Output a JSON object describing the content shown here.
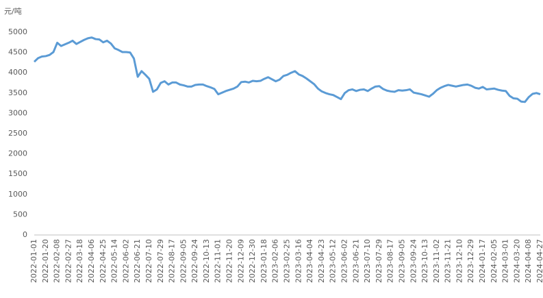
{
  "chart_data": {
    "type": "line",
    "y_label": "元/吨",
    "categories": [
      "2022-01-01",
      null,
      null,
      "2022-01-20",
      null,
      null,
      "2022-02-08",
      null,
      null,
      "2022-02-27",
      null,
      null,
      "2022-03-18",
      null,
      null,
      "2022-04-06",
      null,
      null,
      "2022-04-25",
      null,
      null,
      "2022-05-14",
      null,
      null,
      "2022-06-02",
      null,
      null,
      "2022-06-21",
      null,
      null,
      "2022-07-10",
      null,
      null,
      "2022-07-29",
      null,
      null,
      "2022-08-17",
      null,
      null,
      "2022-09-05",
      null,
      null,
      "2022-09-24",
      null,
      null,
      "2022-10-13",
      null,
      null,
      "2022-11-01",
      null,
      null,
      "2022-11-20",
      null,
      null,
      "2022-12-09",
      null,
      null,
      "2022-12-30",
      null,
      null,
      "2023-01-18",
      null,
      null,
      "2023-02-06",
      null,
      null,
      "2023-02-25",
      null,
      null,
      "2023-03-16",
      null,
      null,
      "2023-04-04",
      null,
      null,
      "2023-04-23",
      null,
      null,
      "2023-05-12",
      null,
      null,
      "2023-06-02",
      null,
      null,
      "2023-06-21",
      null,
      null,
      "2023-07-10",
      null,
      null,
      "2023-07-29",
      null,
      null,
      "2023-08-17",
      null,
      null,
      "2023-09-05",
      null,
      null,
      "2023-09-24",
      null,
      null,
      "2023-10-13",
      null,
      null,
      "2023-11-02",
      null,
      null,
      "2023-11-21",
      null,
      null,
      "2023-12-10",
      null,
      null,
      "2023-12-29",
      null,
      null,
      "2024-01-17",
      null,
      null,
      "2024-02-05",
      null,
      null,
      "2024-03-01",
      null,
      null,
      "2024-03-20",
      null,
      null,
      "2024-04-08",
      null,
      null,
      "2024-04-27"
    ],
    "values": [
      4270,
      4360,
      4400,
      4410,
      4440,
      4510,
      4740,
      4660,
      4700,
      4740,
      4790,
      4710,
      4760,
      4810,
      4850,
      4870,
      4830,
      4820,
      4750,
      4790,
      4720,
      4600,
      4560,
      4510,
      4510,
      4500,
      4350,
      3900,
      4040,
      3950,
      3850,
      3530,
      3590,
      3750,
      3790,
      3710,
      3760,
      3760,
      3710,
      3690,
      3660,
      3660,
      3700,
      3710,
      3710,
      3670,
      3640,
      3600,
      3470,
      3510,
      3550,
      3580,
      3610,
      3660,
      3770,
      3780,
      3760,
      3800,
      3790,
      3800,
      3850,
      3890,
      3840,
      3790,
      3830,
      3920,
      3950,
      4000,
      4040,
      3960,
      3920,
      3860,
      3790,
      3720,
      3610,
      3540,
      3500,
      3470,
      3450,
      3400,
      3350,
      3500,
      3570,
      3590,
      3550,
      3580,
      3590,
      3550,
      3610,
      3660,
      3670,
      3600,
      3560,
      3540,
      3530,
      3570,
      3560,
      3570,
      3590,
      3510,
      3490,
      3470,
      3440,
      3410,
      3480,
      3570,
      3630,
      3670,
      3700,
      3680,
      3660,
      3680,
      3700,
      3710,
      3680,
      3630,
      3610,
      3650,
      3590,
      3600,
      3610,
      3580,
      3560,
      3550,
      3430,
      3370,
      3360,
      3290,
      3280,
      3400,
      3480,
      3500,
      3470
    ],
    "color": "#5b9bd5",
    "ylim": [
      0,
      5000
    ],
    "yticks": [
      0,
      500,
      1000,
      1500,
      2000,
      2500,
      3000,
      3500,
      4000,
      4500,
      5000
    ],
    "grid": false
  }
}
